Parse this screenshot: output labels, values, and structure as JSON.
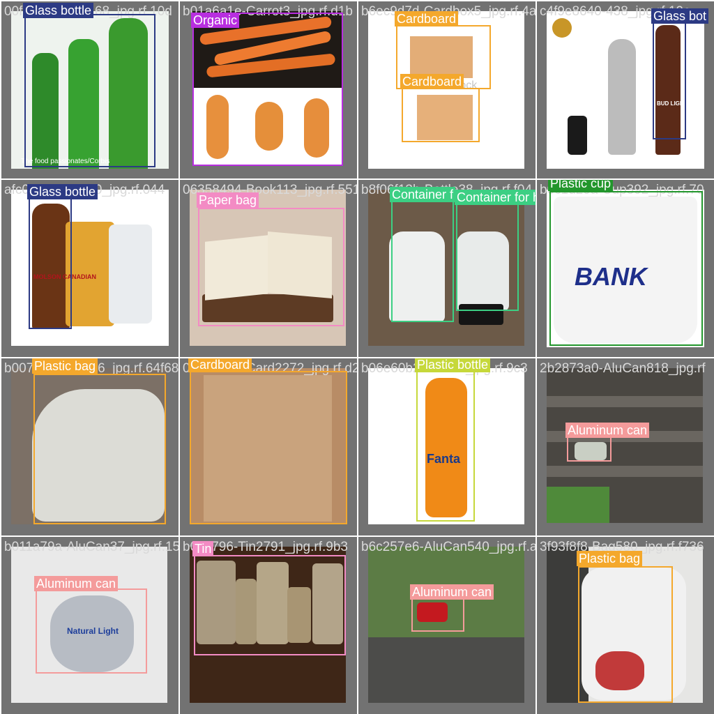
{
  "colors": {
    "glass_bottle": "#2c3a84",
    "organic": "#b82ee0",
    "cardboard": "#f4a82c",
    "paper_bag": "#f38bc4",
    "container": "#3ccf83",
    "plastic_cup": "#22962c",
    "plastic_bag": "#f4a82c",
    "plastic_bottle": "#c6d83a",
    "aluminum_can": "#f49b9b",
    "tin": "#f38bc4"
  },
  "tiles": [
    {
      "filename": "00f3cfd7-Beer168_jpg.rf.10d",
      "labels": [
        {
          "text": "Glass bottle",
          "color": "#2c3a84"
        }
      ],
      "image_text": "The food passionates/Corbis"
    },
    {
      "filename": "b01a6a1e-Carrot3_jpg.rf.d1b",
      "labels": [
        {
          "text": "Organic",
          "color": "#b82ee0"
        }
      ]
    },
    {
      "filename": "b6ec9d7d-Cardbox5_jpg.rf.4a3",
      "labels": [
        {
          "text": "Cardboard",
          "color": "#f4a82c"
        },
        {
          "text": "Cardboard",
          "color": "#f4a82c"
        }
      ],
      "image_text": "shutterstock"
    },
    {
      "filename": "c4f9e8640-438_jpg.rf.10e",
      "labels": [
        {
          "text": "Glass bot",
          "color": "#2c3a84"
        }
      ],
      "image_text": "BUD LIGHT"
    },
    {
      "filename": "afc0f4e0-Beer50_jpg.rf.044",
      "labels": [
        {
          "text": "Glass bottle",
          "color": "#2c3a84"
        }
      ],
      "image_text": "MOLSON CANADIAN"
    },
    {
      "filename": "06358494-Book113_jpg.rf.551",
      "labels": [
        {
          "text": "Paper bag",
          "color": "#f38bc4"
        }
      ]
    },
    {
      "filename": "b8f06f13b-Bottle38_jpg.rf.f04",
      "labels": [
        {
          "text": "Container f",
          "color": "#3ccf83"
        },
        {
          "text": "Container for household chemicals",
          "color": "#3ccf83"
        }
      ]
    },
    {
      "filename": "b0c1d29a-Cup392_jpg.rf.70",
      "labels": [
        {
          "text": "Plastic cup",
          "color": "#22962c"
        }
      ],
      "image_text": "BANK"
    },
    {
      "filename": "b007c4a2-Bag56_jpg.rf.64f68",
      "labels": [
        {
          "text": "Plastic bag",
          "color": "#f4a82c"
        }
      ]
    },
    {
      "filename": "063bde3d-Card2272_jpg.rf.d2e",
      "labels": [
        {
          "text": "Cardboard",
          "color": "#f4a82c"
        }
      ]
    },
    {
      "filename": "b06e60b2-Fanta7_jpg.rf.9c3",
      "labels": [
        {
          "text": "Plastic bottle",
          "color": "#c6d83a"
        }
      ],
      "image_text": "Fanta"
    },
    {
      "filename": "2b2873a0-AluCan818_jpg.rf",
      "labels": [
        {
          "text": "Aluminum can",
          "color": "#f49b9b"
        }
      ]
    },
    {
      "filename": "b011a79a-AluCan37_jpg.rf.15",
      "labels": [
        {
          "text": "Aluminum can",
          "color": "#f49b9b"
        }
      ],
      "image_text": "Natural Light"
    },
    {
      "filename": "b0c3796-Tin2791_jpg.rf.9b3",
      "labels": [
        {
          "text": "Tin",
          "color": "#f38bc4"
        }
      ]
    },
    {
      "filename": "b6c257e6-AluCan540_jpg.rf.a6",
      "labels": [
        {
          "text": "Aluminum can",
          "color": "#f49b9b"
        }
      ]
    },
    {
      "filename": "3f93f8f8-Bag580_jpg.rf.f736",
      "labels": [
        {
          "text": "Plastic bag",
          "color": "#f4a82c"
        }
      ]
    }
  ]
}
